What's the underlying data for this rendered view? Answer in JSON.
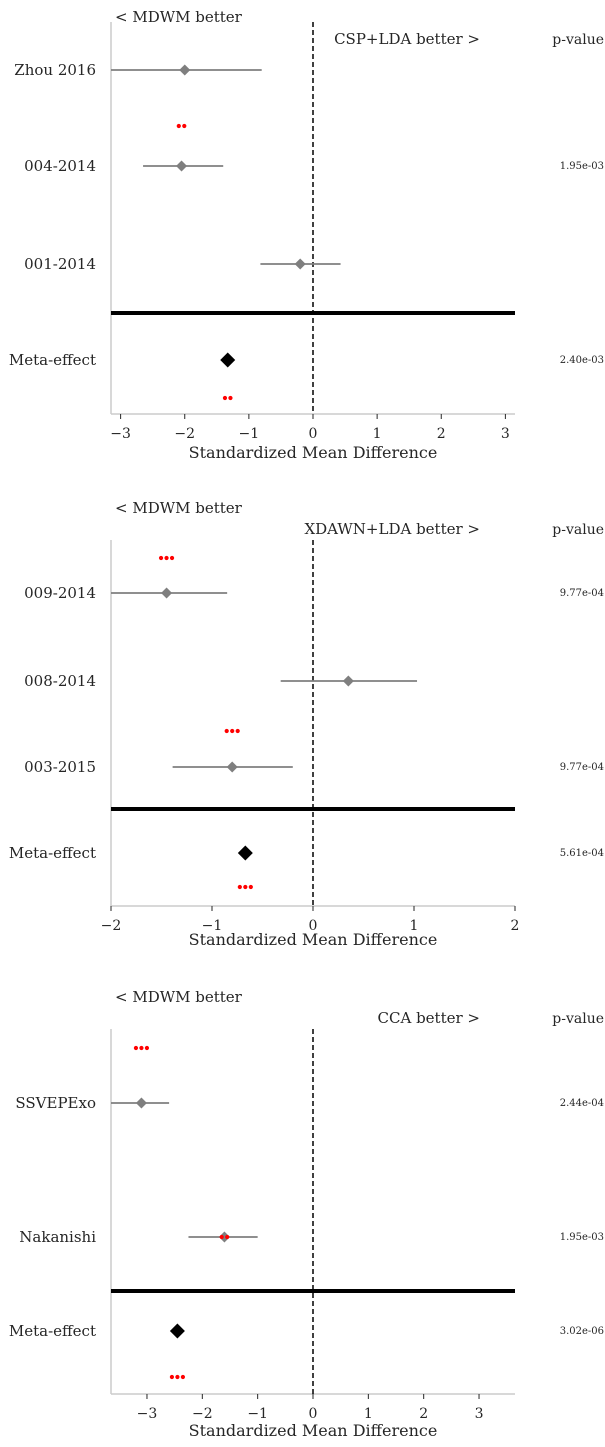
{
  "chart_data": [
    {
      "type": "forest",
      "left_annotation": "< MDWM better",
      "right_annotation": "CSP+LDA better >",
      "pvalue_header": "p-value",
      "xlabel": "Standardized Mean Difference",
      "xlim": [
        -3.15,
        3.15
      ],
      "xticks": [
        -3,
        -2,
        -1,
        0,
        1,
        2,
        3
      ],
      "xtick_labels": [
        "−3",
        "−2",
        "−1",
        "0",
        "1",
        "2",
        "3"
      ],
      "rows": [
        {
          "label": "Zhou 2016",
          "smd": -2.0,
          "ci": [
            -3.15,
            -0.8
          ],
          "pvalue": "",
          "stars": ""
        },
        {
          "label": "004-2014",
          "smd": -2.05,
          "ci": [
            -2.65,
            -1.4
          ],
          "pvalue": "1.95e-03",
          "stars": "**"
        },
        {
          "label": "001-2014",
          "smd": -0.2,
          "ci": [
            -0.82,
            0.43
          ],
          "pvalue": "",
          "stars": ""
        }
      ],
      "meta": {
        "label": "Meta-effect",
        "smd": -1.33,
        "pvalue": "2.40e-03",
        "stars": "**"
      },
      "colors": {
        "study": "#7f7f7f",
        "meta": "#000000",
        "stars": "#ff0000"
      }
    },
    {
      "type": "forest",
      "left_annotation": "< MDWM better",
      "right_annotation": "XDAWN+LDA better >",
      "pvalue_header": "p-value",
      "xlabel": "Standardized Mean Difference",
      "xlim": [
        -2.0,
        2.0
      ],
      "xticks": [
        -2,
        -1,
        0,
        1,
        2
      ],
      "xtick_labels": [
        "−2",
        "−1",
        "0",
        "1",
        "2"
      ],
      "rows": [
        {
          "label": "009-2014",
          "smd": -1.45,
          "ci": [
            -2.0,
            -0.85
          ],
          "pvalue": "9.77e-04",
          "stars": "***"
        },
        {
          "label": "008-2014",
          "smd": 0.35,
          "ci": [
            -0.32,
            1.03
          ],
          "pvalue": "",
          "stars": ""
        },
        {
          "label": "003-2015",
          "smd": -0.8,
          "ci": [
            -1.39,
            -0.2
          ],
          "pvalue": "9.77e-04",
          "stars": "***"
        }
      ],
      "meta": {
        "label": "Meta-effect",
        "smd": -0.67,
        "pvalue": "5.61e-04",
        "stars": "***"
      },
      "colors": {
        "study": "#7f7f7f",
        "meta": "#000000",
        "stars": "#ff0000"
      }
    },
    {
      "type": "forest",
      "left_annotation": "< MDWM better",
      "right_annotation": "CCA better >",
      "pvalue_header": "p-value",
      "xlabel": "Standardized Mean Difference",
      "xlim": [
        -3.65,
        3.65
      ],
      "xticks": [
        -3,
        -2,
        -1,
        0,
        1,
        2,
        3
      ],
      "xtick_labels": [
        "−3",
        "−2",
        "−1",
        "0",
        "1",
        "2",
        "3"
      ],
      "rows": [
        {
          "label": "SSVEPExo",
          "smd": -3.1,
          "ci": [
            -3.65,
            -2.6
          ],
          "pvalue": "2.44e-04",
          "stars": "***"
        },
        {
          "label": "Nakanishi",
          "smd": -1.6,
          "ci": [
            -2.25,
            -1.0
          ],
          "pvalue": "1.95e-03",
          "stars": "**"
        }
      ],
      "meta": {
        "label": "Meta-effect",
        "smd": -2.45,
        "pvalue": "3.02e-06",
        "stars": "***"
      },
      "colors": {
        "study": "#7f7f7f",
        "meta": "#000000",
        "stars": "#ff0000"
      }
    }
  ]
}
